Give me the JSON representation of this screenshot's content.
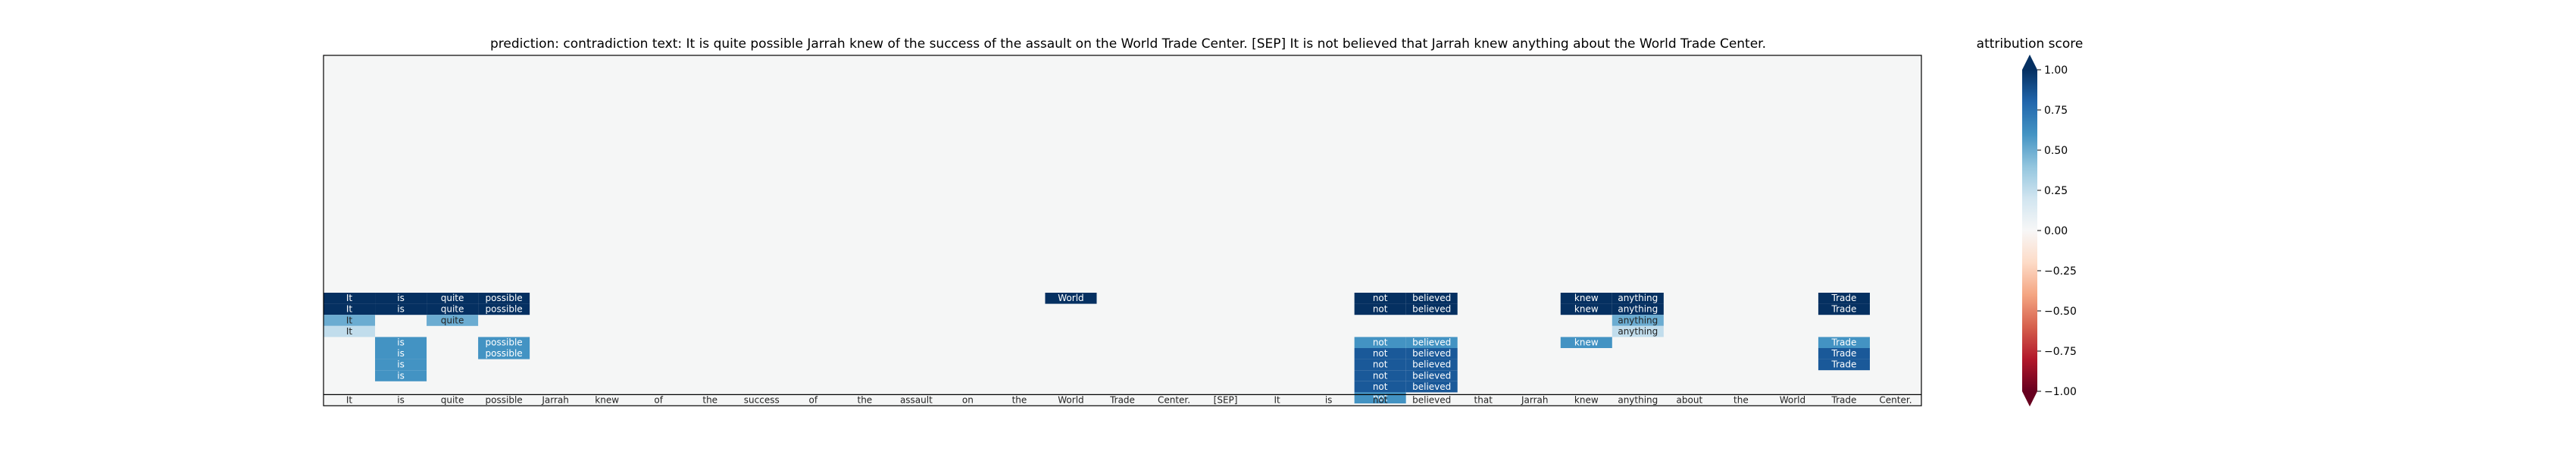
{
  "chart_data": {
    "type": "heatmap",
    "title": "prediction:  contradiction     text:  It is quite possible Jarrah knew of the success of the assault on the World Trade Center. [SEP] It is not believed that Jarrah knew anything about the World Trade Center.",
    "tokens": [
      "It",
      "is",
      "quite",
      "possible",
      "Jarrah",
      "knew",
      "of",
      "the",
      "success",
      "of",
      "the",
      "assault",
      "on",
      "the",
      "World",
      "Trade",
      "Center.",
      "[SEP]",
      "It",
      "is",
      "not",
      "believed",
      "that",
      "Jarrah",
      "knew",
      "anything",
      "about",
      "the",
      "World",
      "Trade",
      "Center."
    ],
    "cells": [
      {
        "row": 0,
        "col": 0,
        "token": "It",
        "value": 1.0
      },
      {
        "row": 0,
        "col": 1,
        "token": "is",
        "value": 1.0
      },
      {
        "row": 0,
        "col": 2,
        "token": "quite",
        "value": 1.0
      },
      {
        "row": 0,
        "col": 3,
        "token": "possible",
        "value": 1.0
      },
      {
        "row": 0,
        "col": 14,
        "token": "World",
        "value": 1.0
      },
      {
        "row": 0,
        "col": 20,
        "token": "not",
        "value": 1.0
      },
      {
        "row": 0,
        "col": 21,
        "token": "believed",
        "value": 1.0
      },
      {
        "row": 0,
        "col": 24,
        "token": "knew",
        "value": 1.0
      },
      {
        "row": 0,
        "col": 25,
        "token": "anything",
        "value": 1.0
      },
      {
        "row": 0,
        "col": 29,
        "token": "Trade",
        "value": 1.0
      },
      {
        "row": 1,
        "col": 0,
        "token": "It",
        "value": 1.0
      },
      {
        "row": 1,
        "col": 1,
        "token": "is",
        "value": 1.0
      },
      {
        "row": 1,
        "col": 2,
        "token": "quite",
        "value": 1.0
      },
      {
        "row": 1,
        "col": 3,
        "token": "possible",
        "value": 1.0
      },
      {
        "row": 1,
        "col": 20,
        "token": "not",
        "value": 1.0
      },
      {
        "row": 1,
        "col": 21,
        "token": "believed",
        "value": 1.0
      },
      {
        "row": 1,
        "col": 24,
        "token": "knew",
        "value": 1.0
      },
      {
        "row": 1,
        "col": 25,
        "token": "anything",
        "value": 1.0
      },
      {
        "row": 1,
        "col": 29,
        "token": "Trade",
        "value": 1.0
      },
      {
        "row": 2,
        "col": 0,
        "token": "It",
        "value": 0.5
      },
      {
        "row": 2,
        "col": 2,
        "token": "quite",
        "value": 0.5
      },
      {
        "row": 2,
        "col": 25,
        "token": "anything",
        "value": 0.5
      },
      {
        "row": 3,
        "col": 0,
        "token": "It",
        "value": 0.25
      },
      {
        "row": 3,
        "col": 25,
        "token": "anything",
        "value": 0.25
      },
      {
        "row": 4,
        "col": 1,
        "token": "is",
        "value": 0.6
      },
      {
        "row": 4,
        "col": 3,
        "token": "possible",
        "value": 0.6
      },
      {
        "row": 4,
        "col": 20,
        "token": "not",
        "value": 0.6
      },
      {
        "row": 4,
        "col": 21,
        "token": "believed",
        "value": 0.6
      },
      {
        "row": 4,
        "col": 24,
        "token": "knew",
        "value": 0.6
      },
      {
        "row": 4,
        "col": 29,
        "token": "Trade",
        "value": 0.6
      },
      {
        "row": 5,
        "col": 1,
        "token": "is",
        "value": 0.6
      },
      {
        "row": 5,
        "col": 3,
        "token": "possible",
        "value": 0.6
      },
      {
        "row": 5,
        "col": 20,
        "token": "not",
        "value": 0.85
      },
      {
        "row": 5,
        "col": 21,
        "token": "believed",
        "value": 0.85
      },
      {
        "row": 5,
        "col": 29,
        "token": "Trade",
        "value": 0.85
      },
      {
        "row": 6,
        "col": 1,
        "token": "is",
        "value": 0.6
      },
      {
        "row": 6,
        "col": 20,
        "token": "not",
        "value": 0.85
      },
      {
        "row": 6,
        "col": 21,
        "token": "believed",
        "value": 0.85
      },
      {
        "row": 6,
        "col": 29,
        "token": "Trade",
        "value": 0.85
      },
      {
        "row": 7,
        "col": 1,
        "token": "is",
        "value": 0.6
      },
      {
        "row": 7,
        "col": 20,
        "token": "not",
        "value": 0.85
      },
      {
        "row": 7,
        "col": 21,
        "token": "believed",
        "value": 0.85
      },
      {
        "row": 8,
        "col": 20,
        "token": "not",
        "value": 0.85
      },
      {
        "row": 8,
        "col": 21,
        "token": "believed",
        "value": 0.85
      },
      {
        "row": 9,
        "col": 20,
        "token": "not",
        "value": 0.6
      }
    ],
    "colorbar": {
      "label": "attribution score",
      "range": [
        -1.0,
        1.0
      ],
      "ticks": [
        "1.00",
        "0.75",
        "0.50",
        "0.25",
        "0.00",
        "−0.25",
        "−0.50",
        "−0.75",
        "−1.00"
      ],
      "colormap": [
        "#67001f",
        "#b2182b",
        "#d6604d",
        "#f4a582",
        "#fddbc7",
        "#f7f7f7",
        "#d1e5f0",
        "#92c5de",
        "#4393c3",
        "#2166ac",
        "#053061"
      ]
    },
    "background_color": "#f5f6f6"
  }
}
